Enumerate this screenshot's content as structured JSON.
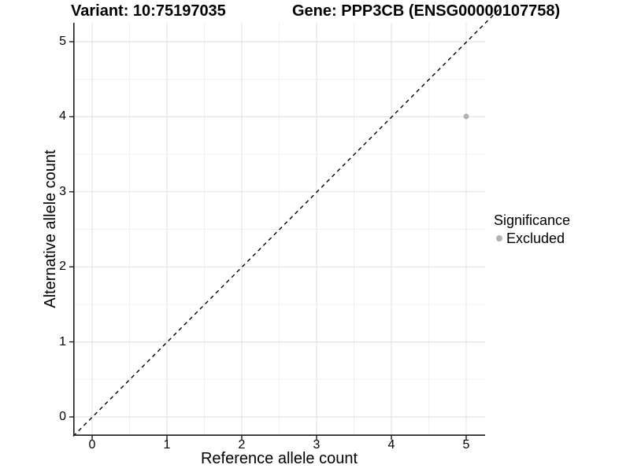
{
  "chart_data": {
    "type": "scatter",
    "titles": [
      "Variant: 10:75197035",
      "Gene: PPP3CB (ENSG00000107758)"
    ],
    "xlabel": "Reference allele count",
    "ylabel": "Alternative allele count",
    "x_ticks": [
      "0",
      "1",
      "2",
      "3",
      "4",
      "5"
    ],
    "y_ticks": [
      "0",
      "1",
      "2",
      "3",
      "4",
      "5"
    ],
    "xlim": [
      -0.25,
      5.25
    ],
    "ylim": [
      -0.25,
      5.25
    ],
    "grid": {
      "major_color": "#e4e4e4",
      "minor_color": "#f0f0f0",
      "minor_interval": 0.5
    },
    "diagonal_line": {
      "style": "dashed",
      "slope": 1,
      "intercept": 0,
      "color": "#000000"
    },
    "points": [
      {
        "x": 5,
        "y": 4,
        "significance": "Excluded",
        "color": "#b3b3b3",
        "radius": 3.5
      }
    ],
    "legend": {
      "position": "right",
      "title": "Significance",
      "entries": [
        {
          "label": "Excluded",
          "color": "#b3b3b3"
        }
      ]
    }
  }
}
